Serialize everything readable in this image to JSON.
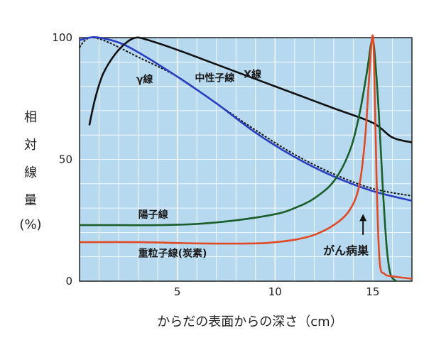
{
  "chart_data": {
    "type": "line",
    "xlabel": "からだの表面からの深さ（cm）",
    "ylabel_chars": [
      "相",
      "対",
      "線",
      "量",
      "(%)"
    ],
    "xlim": [
      0,
      17
    ],
    "ylim": [
      0,
      100
    ],
    "x_ticks": [
      5,
      10,
      15
    ],
    "y_ticks": [
      0,
      50,
      100
    ],
    "x_tick_labels": [
      "5",
      "10",
      "15"
    ],
    "y_tick_labels": [
      "0",
      "50",
      "100"
    ],
    "grid": true,
    "background": "#b7d9f0",
    "gridline_color": "#ffffff",
    "annotation": {
      "text": "がん病巣",
      "arrow_x": 14.5,
      "arrow_y_from": 19,
      "arrow_y_to": 27
    },
    "series": [
      {
        "name": "X線",
        "color": "#111111",
        "dash": "",
        "label_at": [
          8.4,
          83.5
        ],
        "points": [
          [
            0.5,
            64
          ],
          [
            0.8,
            75
          ],
          [
            1.2,
            85
          ],
          [
            1.8,
            93
          ],
          [
            2.4,
            98
          ],
          [
            2.9,
            100
          ],
          [
            3.5,
            99
          ],
          [
            5,
            95
          ],
          [
            7,
            89
          ],
          [
            9,
            83
          ],
          [
            11,
            77
          ],
          [
            13,
            71
          ],
          [
            15,
            65
          ],
          [
            16,
            59
          ],
          [
            17,
            57
          ]
        ]
      },
      {
        "name": "γ線",
        "color": "#111111",
        "dash": "3,2",
        "label_at": [
          2.9,
          81.5
        ],
        "points": [
          [
            0,
            96
          ],
          [
            0.3,
            99
          ],
          [
            0.7,
            100
          ],
          [
            1.5,
            98
          ],
          [
            3,
            92
          ],
          [
            5,
            84
          ],
          [
            7,
            73
          ],
          [
            9,
            62
          ],
          [
            11,
            52
          ],
          [
            13,
            44
          ],
          [
            15,
            38
          ],
          [
            17,
            35
          ]
        ]
      },
      {
        "name": "中性子線",
        "color": "#2a3fbf",
        "dash": "",
        "label_at": [
          5.9,
          82
        ],
        "points": [
          [
            0,
            99
          ],
          [
            0.5,
            100
          ],
          [
            1,
            100
          ],
          [
            2,
            98
          ],
          [
            3,
            94
          ],
          [
            5,
            84
          ],
          [
            7,
            73
          ],
          [
            9,
            61
          ],
          [
            11,
            51
          ],
          [
            13,
            43
          ],
          [
            15,
            37
          ],
          [
            17,
            33
          ]
        ]
      },
      {
        "name": "陽子線",
        "color": "#1a5e2a",
        "dash": "",
        "label_at": [
          3.0,
          26
        ],
        "points": [
          [
            0,
            23
          ],
          [
            2,
            23
          ],
          [
            4,
            23
          ],
          [
            6,
            23.5
          ],
          [
            8,
            25
          ],
          [
            10,
            27.5
          ],
          [
            11,
            30
          ],
          [
            12,
            34
          ],
          [
            13,
            41
          ],
          [
            13.8,
            53
          ],
          [
            14.3,
            68
          ],
          [
            14.7,
            86
          ],
          [
            14.9,
            97
          ],
          [
            15,
            99
          ],
          [
            15.1,
            93
          ],
          [
            15.3,
            70
          ],
          [
            15.5,
            40
          ],
          [
            15.7,
            15
          ],
          [
            15.9,
            3
          ],
          [
            16.2,
            0
          ]
        ]
      },
      {
        "name": "重粒子線(炭素)",
        "color": "#e04a24",
        "dash": "",
        "label_at": [
          3.0,
          10
        ],
        "points": [
          [
            0,
            16
          ],
          [
            3,
            16
          ],
          [
            6,
            15.5
          ],
          [
            9,
            15.5
          ],
          [
            10,
            16
          ],
          [
            11,
            17
          ],
          [
            12,
            19
          ],
          [
            13,
            23
          ],
          [
            13.8,
            29
          ],
          [
            14.3,
            39
          ],
          [
            14.6,
            58
          ],
          [
            14.8,
            82
          ],
          [
            14.95,
            99
          ],
          [
            15.05,
            94
          ],
          [
            15.2,
            40
          ],
          [
            15.35,
            8
          ],
          [
            15.6,
            3
          ],
          [
            16,
            2
          ],
          [
            17,
            1
          ]
        ]
      }
    ]
  }
}
